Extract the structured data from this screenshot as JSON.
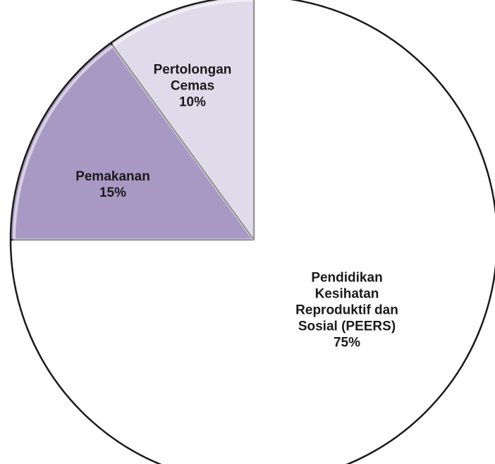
{
  "chart_data": {
    "type": "pie",
    "title": "",
    "start_angle": "12 o'clock",
    "direction": "counterclockwise",
    "slices": [
      {
        "label": "Pendidikan\nKesihatan\nReproduktif dan\nSosial (PEERS)",
        "percent_label": "75%",
        "value": 75,
        "color": "#ffffff"
      },
      {
        "label": "Pemakanan",
        "percent_label": "15%",
        "value": 15,
        "color": "#a899c4"
      },
      {
        "label": "Pertolongan\nCemas",
        "percent_label": "10%",
        "value": 10,
        "color": "#e0dbea"
      }
    ]
  }
}
